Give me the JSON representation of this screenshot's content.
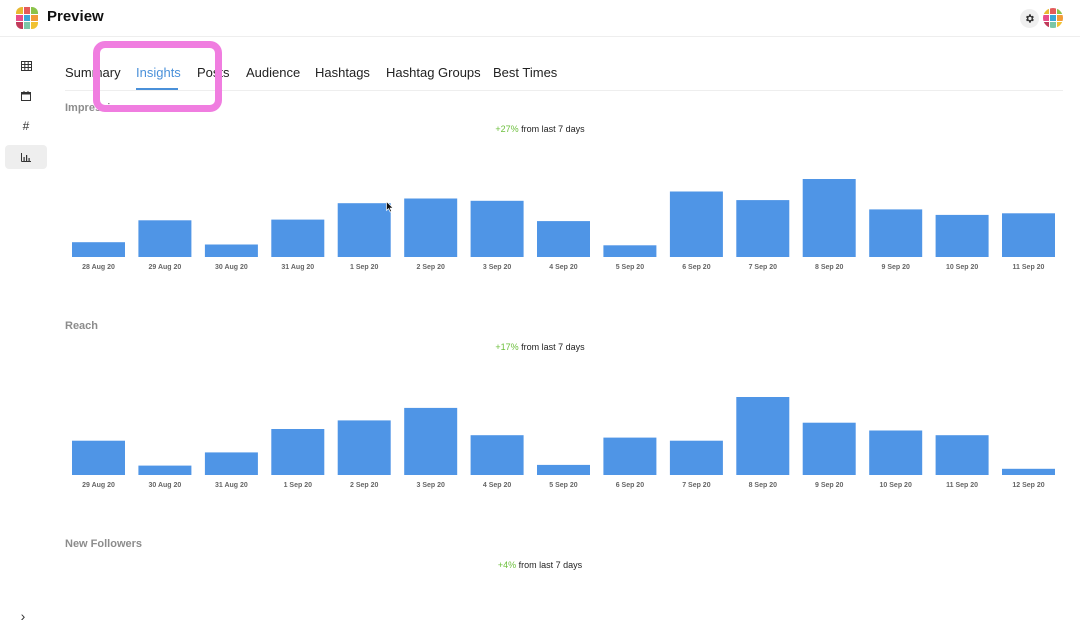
{
  "app": {
    "title": "Preview",
    "logo_colors": [
      "#e8b931",
      "#e35a5a",
      "#8bc34a",
      "#e84d8a",
      "#39a6d8",
      "#f29b38",
      "#c13a5a",
      "#7bc6a8",
      "#f1c232"
    ],
    "avatar_colors": [
      "#e8b931",
      "#e35a5a",
      "#8bc34a",
      "#e84d8a",
      "#39a6d8",
      "#f29b38",
      "#c13a5a",
      "#7bc6a8",
      "#f1c232"
    ]
  },
  "header": {
    "settings_icon": "gear-icon"
  },
  "sidebar": {
    "items": [
      {
        "name": "grid",
        "icon": "grid-icon"
      },
      {
        "name": "calendar",
        "icon": "calendar-icon"
      },
      {
        "name": "hashtags",
        "icon": "hash-icon",
        "glyph": "#"
      },
      {
        "name": "analytics",
        "icon": "bar-chart-icon",
        "active": true
      }
    ],
    "expand_glyph": "›"
  },
  "tabs": [
    "Summary",
    "Insights",
    "Posts",
    "Audience",
    "Hashtags",
    "Hashtag Groups",
    "Best Times"
  ],
  "active_tab": "Insights",
  "colors": {
    "accent": "#4a90d9",
    "bar": "#4f95e6",
    "positive": "#6cbf3c",
    "highlight": "#f07de0"
  },
  "sections": {
    "impressions": {
      "title": "Impressions",
      "change_pct": "+27%",
      "change_text": "from last 7 days"
    },
    "reach": {
      "title": "Reach",
      "change_pct": "+17%",
      "change_text": "from last 7 days"
    },
    "followers": {
      "title": "New Followers",
      "change_pct": "+4%",
      "change_text": "from last 7 days"
    }
  },
  "chart_data": [
    {
      "type": "bar",
      "categories": [
        "28 Aug 20",
        "29 Aug 20",
        "30 Aug 20",
        "31 Aug 20",
        "1 Sep 20",
        "2 Sep 20",
        "3 Sep 20",
        "4 Sep 20",
        "5 Sep 20",
        "6 Sep 20",
        "7 Sep 20",
        "8 Sep 20",
        "9 Sep 20",
        "10 Sep 20",
        "11 Sep 20"
      ],
      "values": [
        19,
        47,
        16,
        48,
        69,
        75,
        72,
        46,
        15,
        84,
        73,
        100,
        61,
        54,
        56
      ],
      "ylim": [
        0,
        100
      ],
      "grid": false
    },
    {
      "type": "bar",
      "categories": [
        "29 Aug 20",
        "30 Aug 20",
        "31 Aug 20",
        "1 Sep 20",
        "2 Sep 20",
        "3 Sep 20",
        "4 Sep 20",
        "5 Sep 20",
        "6 Sep 20",
        "7 Sep 20",
        "8 Sep 20",
        "9 Sep 20",
        "10 Sep 20",
        "11 Sep 20",
        "12 Sep 20"
      ],
      "values": [
        44,
        12,
        29,
        59,
        70,
        86,
        51,
        13,
        48,
        44,
        100,
        67,
        57,
        51,
        8
      ],
      "ylim": [
        0,
        100
      ],
      "grid": false
    }
  ]
}
